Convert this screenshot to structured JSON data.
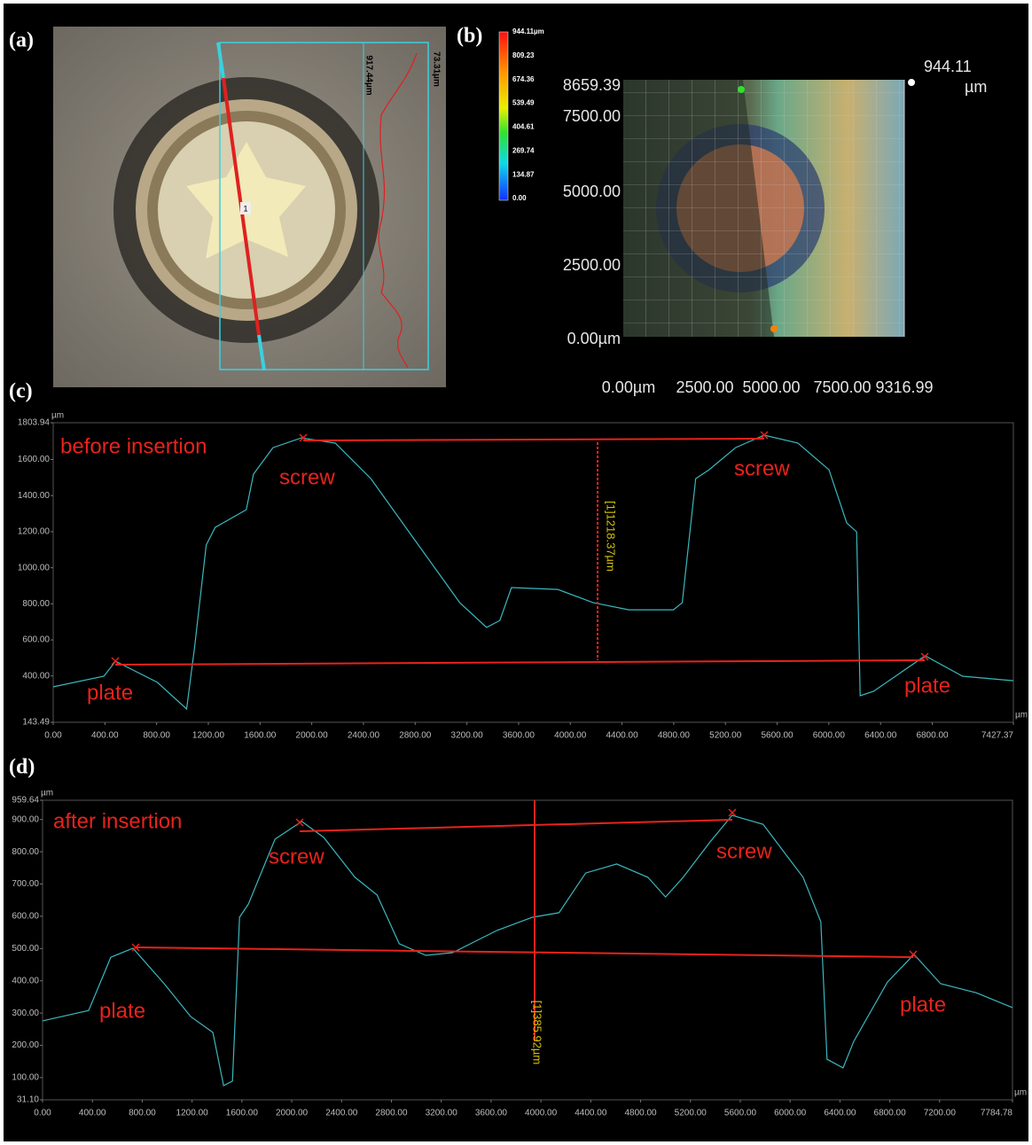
{
  "panel_labels": [
    "(a)",
    "(b)",
    "(c)",
    "(d)"
  ],
  "image_a": {
    "line_label": "1",
    "height_labels": [
      "917.44µm",
      "73.31µm"
    ]
  },
  "image_b": {
    "colorbar_labels": [
      "944.11µm",
      "809.23",
      "674.36",
      "539.49",
      "404.61",
      "269.74",
      "134.87",
      "0.00"
    ],
    "y_labels": [
      "8659.39",
      "7500.00",
      "5000.00",
      "2500.00",
      "0.00µm"
    ],
    "x_labels": [
      "0.00µm",
      "2500.00",
      "5000.00",
      "7500.00",
      "9316.99"
    ],
    "z_label": "944.11",
    "z_unit": "µm"
  },
  "chart_data": [
    {
      "type": "line",
      "title": "before insertion",
      "x_unit": "µm",
      "y_unit": "µm",
      "color": "#3ab8bf",
      "xlim": [
        0,
        7427.37
      ],
      "ylim": [
        143.49,
        1803.94
      ],
      "xticks": [
        {
          "value": 0,
          "label": "0.00"
        },
        {
          "value": 400,
          "label": "400.00"
        },
        {
          "value": 800,
          "label": "800.00"
        },
        {
          "value": 1200,
          "label": "1200.00"
        },
        {
          "value": 1600,
          "label": "1600.00"
        },
        {
          "value": 2000,
          "label": "2000.00"
        },
        {
          "value": 2400,
          "label": "2400.00"
        },
        {
          "value": 2800,
          "label": "2800.00"
        },
        {
          "value": 3200,
          "label": "3200.00"
        },
        {
          "value": 3600,
          "label": "3600.00"
        },
        {
          "value": 4000,
          "label": "4000.00"
        },
        {
          "value": 4400,
          "label": "4400.00"
        },
        {
          "value": 4800,
          "label": "4800.00"
        },
        {
          "value": 5200,
          "label": "5200.00"
        },
        {
          "value": 5600,
          "label": "5600.00"
        },
        {
          "value": 6000,
          "label": "6000.00"
        },
        {
          "value": 6400,
          "label": "6400.00"
        },
        {
          "value": 6800,
          "label": "6800.00"
        },
        7427.37
      ],
      "yticks": [
        143.49,
        {
          "value": 400,
          "label": "400.00"
        },
        {
          "value": 600,
          "label": "600.00"
        },
        {
          "value": 800,
          "label": "800.00"
        },
        {
          "value": 1000,
          "label": "1000.00"
        },
        {
          "value": 1200,
          "label": "1200.00"
        },
        {
          "value": 1400,
          "label": "1400.00"
        },
        {
          "value": 1600,
          "label": "1600.00"
        },
        1803.94
      ],
      "x": [
        0,
        392,
        482,
        805,
        1032,
        1094,
        1184,
        1253,
        1494,
        1549,
        1700,
        1920,
        2182,
        2457,
        2801,
        3145,
        3352,
        3455,
        3545,
        3903,
        4178,
        4453,
        4797,
        4866,
        4970,
        5073,
        5279,
        5499,
        5761,
        6001,
        6139,
        6215,
        6242,
        6345,
        6745,
        7034,
        7427
      ],
      "values": [
        340,
        399,
        482,
        365,
        217,
        561,
        1126,
        1224,
        1322,
        1519,
        1666,
        1720,
        1691,
        1494,
        1150,
        806,
        669,
        708,
        890,
        880,
        806,
        767,
        767,
        806,
        1494,
        1543,
        1666,
        1735,
        1691,
        1543,
        1248,
        1199,
        291,
        315,
        512,
        399,
        374
      ],
      "labels": [
        "screw",
        "screw",
        "plate",
        "plate"
      ],
      "measurement": "[1]1218.37µm"
    },
    {
      "type": "line",
      "title": "after insertion",
      "x_unit": "µm",
      "y_unit": "µm",
      "color": "#3ab8bf",
      "xlim": [
        0,
        7784.78
      ],
      "ylim": [
        31.1,
        959.64
      ],
      "xticks": [
        {
          "value": 0,
          "label": "0.00"
        },
        {
          "value": 400,
          "label": "400.00"
        },
        {
          "value": 800,
          "label": "800.00"
        },
        {
          "value": 1200,
          "label": "1200.00"
        },
        {
          "value": 1600,
          "label": "1600.00"
        },
        {
          "value": 2000,
          "label": "2000.00"
        },
        {
          "value": 2400,
          "label": "2400.00"
        },
        {
          "value": 2800,
          "label": "2800.00"
        },
        {
          "value": 3200,
          "label": "3200.00"
        },
        {
          "value": 3600,
          "label": "3600.00"
        },
        {
          "value": 4000,
          "label": "4000.00"
        },
        {
          "value": 4400,
          "label": "4400.00"
        },
        {
          "value": 4800,
          "label": "4800.00"
        },
        {
          "value": 5200,
          "label": "5200.00"
        },
        {
          "value": 5600,
          "label": "5600.00"
        },
        {
          "value": 6000,
          "label": "6000.00"
        },
        {
          "value": 6400,
          "label": "6400.00"
        },
        {
          "value": 6800,
          "label": "6800.00"
        },
        {
          "value": 7200,
          "label": "7200.00"
        },
        7784.78
      ],
      "yticks": [
        {
          "value": 31.1,
          "label": "31.10"
        },
        {
          "value": 100,
          "label": "100.00"
        },
        {
          "value": 200,
          "label": "200.00"
        },
        {
          "value": 300,
          "label": "300.00"
        },
        {
          "value": 400,
          "label": "400.00"
        },
        {
          "value": 500,
          "label": "500.00"
        },
        {
          "value": 600,
          "label": "600.00"
        },
        {
          "value": 700,
          "label": "700.00"
        },
        {
          "value": 800,
          "label": "800.00"
        },
        {
          "value": 900,
          "label": "900.00"
        },
        959.64
      ],
      "x": [
        0,
        370,
        548,
        726,
        976,
        1189,
        1367,
        1453,
        1524,
        1581,
        1652,
        1866,
        2080,
        2258,
        2507,
        2685,
        2863,
        3077,
        3291,
        3647,
        3932,
        4145,
        4359,
        4608,
        4858,
        5000,
        5142,
        5356,
        5534,
        5783,
        6104,
        6246,
        6296,
        6425,
        6510,
        6781,
        6994,
        7208,
        7493,
        7784
      ],
      "values": [
        276,
        308,
        473,
        501,
        391,
        289,
        240,
        75,
        89,
        597,
        638,
        839,
        894,
        844,
        721,
        666,
        515,
        479,
        487,
        556,
        597,
        611,
        734,
        762,
        721,
        660,
        721,
        830,
        913,
        885,
        721,
        583,
        157,
        130,
        212,
        396,
        482,
        391,
        363,
        317
      ],
      "labels": [
        "screw",
        "screw",
        "plate",
        "plate"
      ],
      "measurement": "[1]385.92µm"
    }
  ]
}
